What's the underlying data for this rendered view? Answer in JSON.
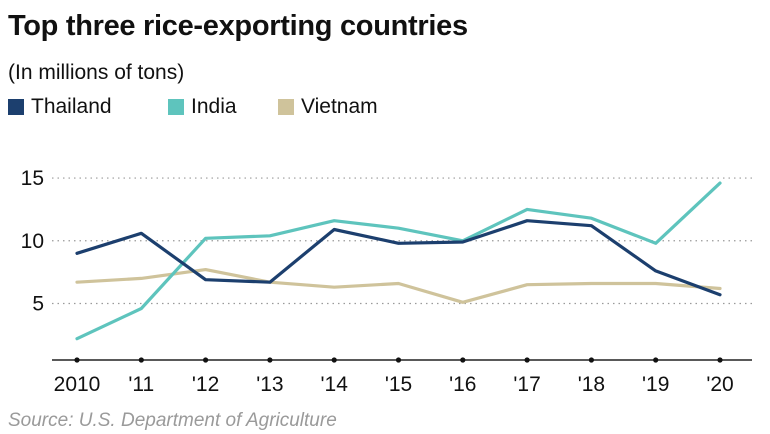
{
  "title": "Top three rice-exporting countries",
  "subtitle": "(In millions of tons)",
  "source": "Source: U.S. Department of Agriculture",
  "chart_data": {
    "type": "line",
    "title": "Top three rice-exporting countries",
    "subtitle": "(In millions of tons)",
    "xlabel": "",
    "ylabel": "",
    "x": [
      2010,
      2011,
      2012,
      2013,
      2014,
      2015,
      2016,
      2017,
      2018,
      2019,
      2020
    ],
    "x_tick_labels": [
      "2010",
      "'11",
      "'12",
      "'13",
      "'14",
      "'15",
      "'16",
      "'17",
      "'18",
      "'19",
      "'20"
    ],
    "y_ticks": [
      5,
      10,
      15
    ],
    "ylim": [
      0.5,
      15.8
    ],
    "grid": "horizontal-dotted",
    "legend_position": "top-left",
    "series": [
      {
        "name": "Thailand",
        "color": "#1c3f6e",
        "values": [
          9.0,
          10.6,
          6.9,
          6.7,
          10.9,
          9.8,
          9.9,
          11.6,
          11.2,
          7.6,
          5.7
        ]
      },
      {
        "name": "India",
        "color": "#5ec4bd",
        "values": [
          2.2,
          4.6,
          10.2,
          10.4,
          11.6,
          11.0,
          10.0,
          12.5,
          11.8,
          9.8,
          14.6
        ]
      },
      {
        "name": "Vietnam",
        "color": "#cfc39b",
        "values": [
          6.7,
          7.0,
          7.7,
          6.7,
          6.3,
          6.6,
          5.1,
          6.5,
          6.6,
          6.6,
          6.2
        ]
      }
    ]
  }
}
